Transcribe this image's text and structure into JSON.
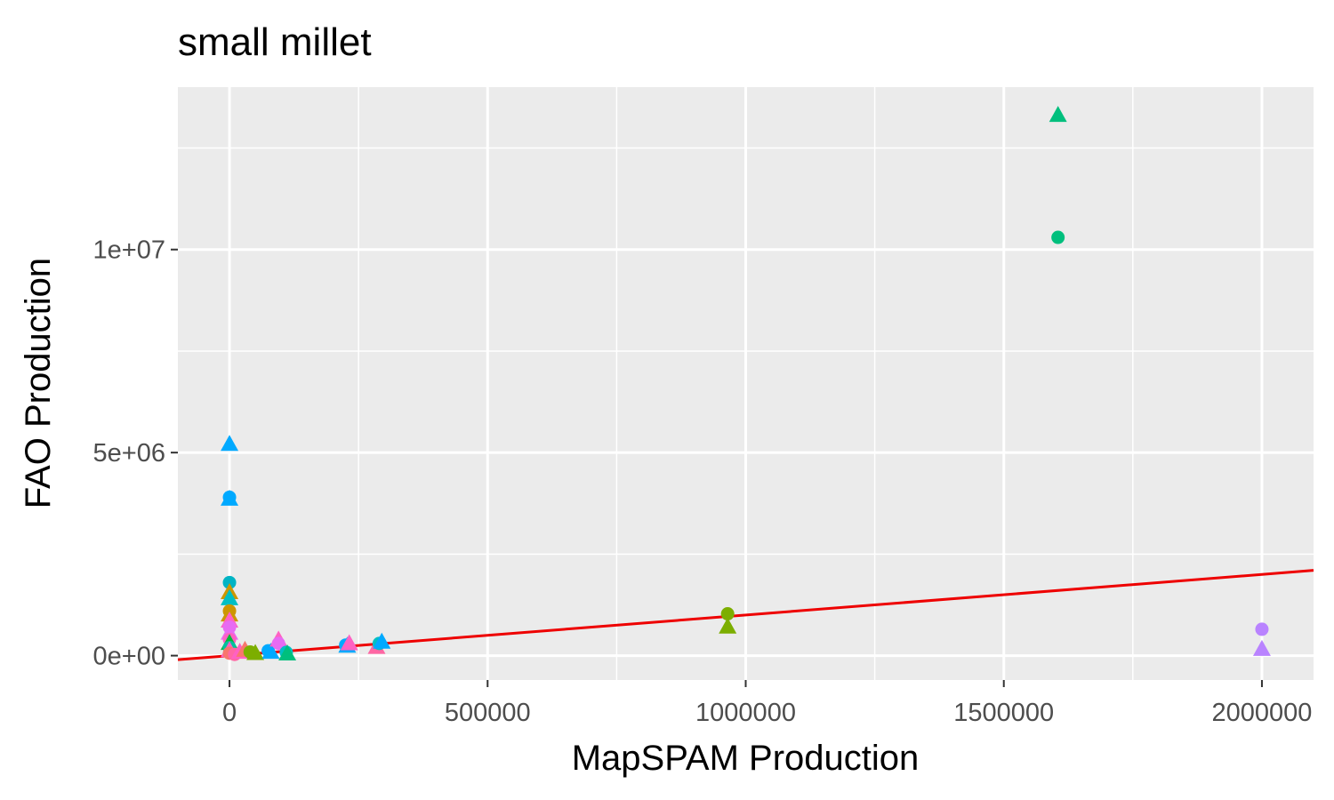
{
  "chart_data": {
    "type": "scatter",
    "title": "small millet",
    "xlabel": "MapSPAM Production",
    "ylabel": "FAO Production",
    "xlim": [
      -100000,
      2100000
    ],
    "ylim": [
      -600000,
      14000000
    ],
    "x_ticks": [
      0,
      500000,
      1000000,
      1500000,
      2000000
    ],
    "x_tick_labels": [
      "0",
      "500000",
      "1000000",
      "1500000",
      "2000000"
    ],
    "y_ticks": [
      0,
      5000000,
      10000000
    ],
    "y_tick_labels": [
      "0e+00",
      "5e+06",
      "1e+07"
    ],
    "grid": true,
    "panel_background": "#ebebeb",
    "reference_line": {
      "slope": 1,
      "intercept": 0,
      "color": "#ee0000"
    },
    "points": [
      {
        "x": 1605000,
        "y": 13300000,
        "shape": "triangle",
        "color": "#00BF7D"
      },
      {
        "x": 1605000,
        "y": 10300000,
        "shape": "circle",
        "color": "#00BF7D"
      },
      {
        "x": 2000000,
        "y": 650000,
        "shape": "circle",
        "color": "#B983FF"
      },
      {
        "x": 2000000,
        "y": 150000,
        "shape": "triangle",
        "color": "#B983FF"
      },
      {
        "x": 965000,
        "y": 1030000,
        "shape": "circle",
        "color": "#7CAE00"
      },
      {
        "x": 965000,
        "y": 700000,
        "shape": "triangle",
        "color": "#7CAE00"
      },
      {
        "x": 0,
        "y": 5200000,
        "shape": "triangle",
        "color": "#00A9FF"
      },
      {
        "x": 0,
        "y": 3900000,
        "shape": "circle",
        "color": "#00A9FF"
      },
      {
        "x": 0,
        "y": 3850000,
        "shape": "triangle",
        "color": "#00A9FF"
      },
      {
        "x": 0,
        "y": 1800000,
        "shape": "circle",
        "color": "#00B4C4"
      },
      {
        "x": 0,
        "y": 1550000,
        "shape": "triangle",
        "color": "#CD9600"
      },
      {
        "x": 0,
        "y": 1400000,
        "shape": "triangle",
        "color": "#00BFC4"
      },
      {
        "x": 0,
        "y": 1100000,
        "shape": "circle",
        "color": "#CD9600"
      },
      {
        "x": 0,
        "y": 1000000,
        "shape": "triangle",
        "color": "#CD9600"
      },
      {
        "x": 0,
        "y": 850000,
        "shape": "triangle",
        "color": "#FF61C3"
      },
      {
        "x": 0,
        "y": 700000,
        "shape": "circle",
        "color": "#E76BF3"
      },
      {
        "x": 0,
        "y": 550000,
        "shape": "triangle",
        "color": "#E76BF3"
      },
      {
        "x": 0,
        "y": 400000,
        "shape": "circle",
        "color": "#FF61C3"
      },
      {
        "x": 0,
        "y": 300000,
        "shape": "triangle",
        "color": "#00BA38"
      },
      {
        "x": 0,
        "y": 200000,
        "shape": "circle",
        "color": "#00C19F"
      },
      {
        "x": 0,
        "y": 120000,
        "shape": "triangle",
        "color": "#FF61C3"
      },
      {
        "x": 0,
        "y": 60000,
        "shape": "circle",
        "color": "#F8766D"
      },
      {
        "x": 10000,
        "y": 30000,
        "shape": "circle",
        "color": "#FF67A4"
      },
      {
        "x": 20000,
        "y": 80000,
        "shape": "triangle",
        "color": "#FF61C3"
      },
      {
        "x": 30000,
        "y": 130000,
        "shape": "triangle",
        "color": "#F8766D"
      },
      {
        "x": 40000,
        "y": 90000,
        "shape": "circle",
        "color": "#7CAE00"
      },
      {
        "x": 50000,
        "y": 50000,
        "shape": "triangle",
        "color": "#7CAE00"
      },
      {
        "x": 75000,
        "y": 120000,
        "shape": "circle",
        "color": "#00A9FF"
      },
      {
        "x": 80000,
        "y": 80000,
        "shape": "triangle",
        "color": "#00A9FF"
      },
      {
        "x": 95000,
        "y": 380000,
        "shape": "triangle",
        "color": "#FF61C3"
      },
      {
        "x": 95000,
        "y": 300000,
        "shape": "circle",
        "color": "#E76BF3"
      },
      {
        "x": 110000,
        "y": 80000,
        "shape": "circle",
        "color": "#00BFC4"
      },
      {
        "x": 112000,
        "y": 40000,
        "shape": "triangle",
        "color": "#00BF7D"
      },
      {
        "x": 225000,
        "y": 260000,
        "shape": "circle",
        "color": "#00A9FF"
      },
      {
        "x": 228000,
        "y": 230000,
        "shape": "triangle",
        "color": "#00A9FF"
      },
      {
        "x": 232000,
        "y": 290000,
        "shape": "triangle",
        "color": "#FF61C3"
      },
      {
        "x": 285000,
        "y": 200000,
        "shape": "triangle",
        "color": "#FF67A4"
      },
      {
        "x": 290000,
        "y": 300000,
        "shape": "circle",
        "color": "#00BFC4"
      },
      {
        "x": 295000,
        "y": 330000,
        "shape": "triangle",
        "color": "#00A9FF"
      }
    ]
  }
}
